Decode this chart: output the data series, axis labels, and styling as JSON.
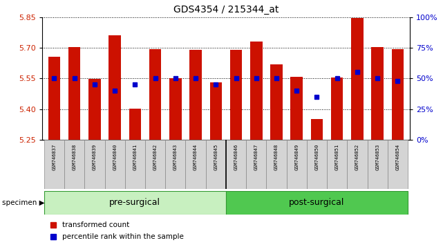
{
  "title": "GDS4354 / 215344_at",
  "samples": [
    "GSM746837",
    "GSM746838",
    "GSM746839",
    "GSM746840",
    "GSM746841",
    "GSM746842",
    "GSM746843",
    "GSM746844",
    "GSM746845",
    "GSM746846",
    "GSM746847",
    "GSM746848",
    "GSM746849",
    "GSM746850",
    "GSM746851",
    "GSM746852",
    "GSM746853",
    "GSM746854"
  ],
  "transformed_count": [
    5.655,
    5.705,
    5.548,
    5.762,
    5.403,
    5.693,
    5.55,
    5.69,
    5.53,
    5.69,
    5.73,
    5.62,
    5.558,
    5.35,
    5.555,
    5.845,
    5.705,
    5.695
  ],
  "percentile_rank": [
    50,
    50,
    45,
    40,
    45,
    50,
    50,
    50,
    45,
    50,
    50,
    50,
    40,
    35,
    50,
    55,
    50,
    48
  ],
  "groups": [
    {
      "label": "pre-surgical",
      "start": 0,
      "end": 9,
      "color": "#c8f0c0"
    },
    {
      "label": "post-surgical",
      "start": 9,
      "end": 18,
      "color": "#50c850"
    }
  ],
  "ylim_left": [
    5.25,
    5.85
  ],
  "yticks_left": [
    5.25,
    5.4,
    5.55,
    5.7,
    5.85
  ],
  "yticks_right": [
    0,
    25,
    50,
    75,
    100
  ],
  "bar_color": "#cc1100",
  "dot_color": "#0000cc",
  "bar_bottom": 5.25,
  "legend_items": [
    {
      "label": "transformed count",
      "color": "#cc1100",
      "marker": "s"
    },
    {
      "label": "percentile rank within the sample",
      "color": "#0000cc",
      "marker": "s"
    }
  ],
  "title_fontsize": 10,
  "group_label_fontsize": 9,
  "sample_fontsize": 5.0
}
